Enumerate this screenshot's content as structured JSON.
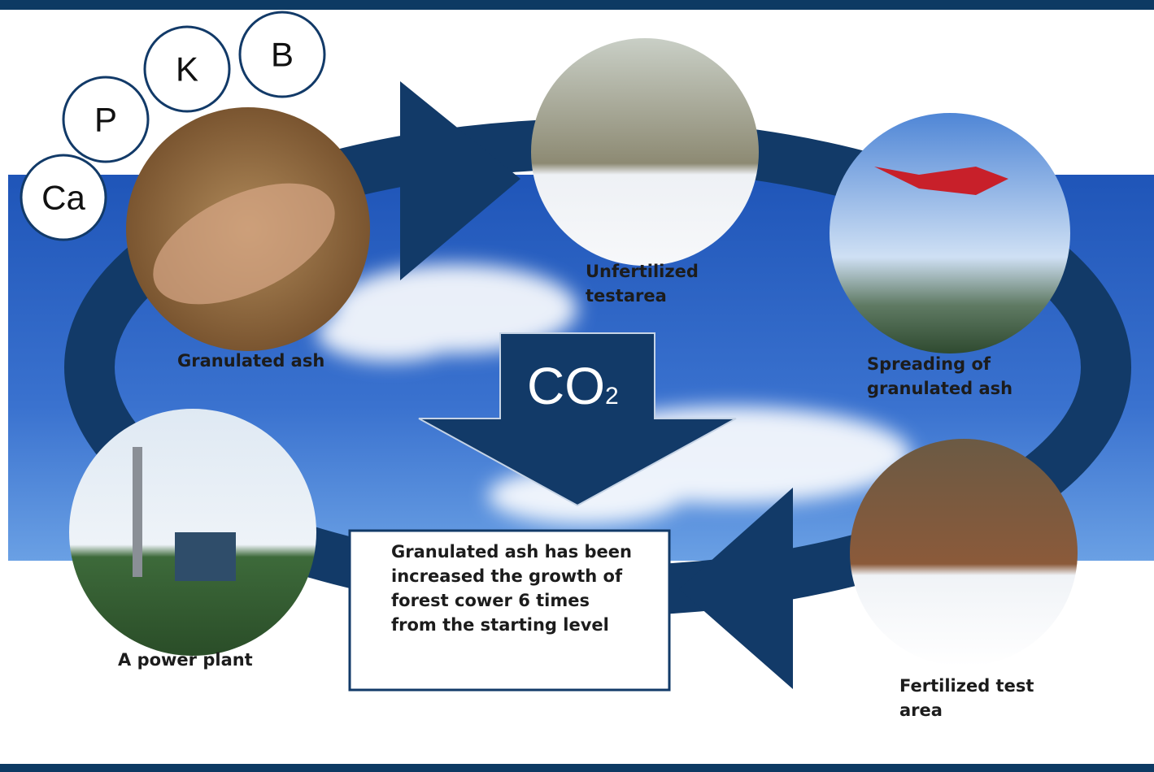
{
  "elements": [
    "Ca",
    "P",
    "K",
    "B"
  ],
  "co2": {
    "main": "CO",
    "subscript": "2"
  },
  "nodes": [
    {
      "label": [
        "Granulated ash"
      ]
    },
    {
      "label": [
        "Unfertilized",
        "testarea"
      ]
    },
    {
      "label": [
        "Spreading of",
        "granulated ash"
      ]
    },
    {
      "label": [
        "Fertilized test",
        "area"
      ]
    },
    {
      "label": [
        "A power plant"
      ]
    }
  ],
  "note": [
    "Granulated ash has been",
    "increased the growth of",
    "forest cower 6 times",
    "from the starting level"
  ]
}
